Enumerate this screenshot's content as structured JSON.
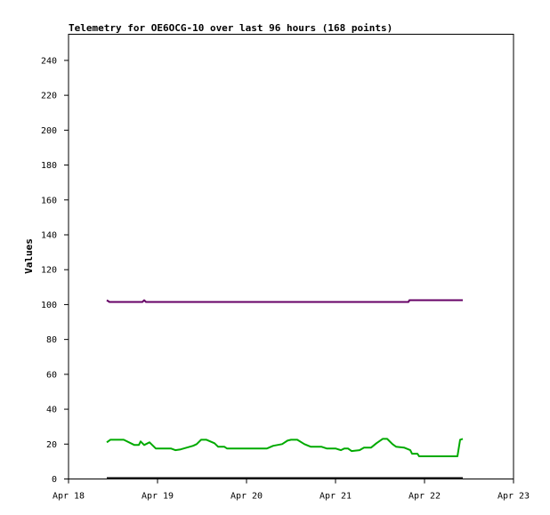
{
  "chart_data": {
    "type": "line",
    "title": "Telemetry for OE6OCG-10 over last 96 hours (168 points)",
    "ylabel": "Values",
    "xlabel": "",
    "ylim": [
      0,
      255
    ],
    "y_ticks": [
      0,
      20,
      40,
      60,
      80,
      100,
      120,
      140,
      160,
      180,
      200,
      220,
      240
    ],
    "x_ticks": [
      "Apr 18",
      "Apr 19",
      "Apr 20",
      "Apr 21",
      "Apr 22",
      "Apr 23"
    ],
    "x_domain_days": [
      0,
      5
    ],
    "grid": false,
    "legend": "none",
    "series": [
      {
        "color": "#660066",
        "points": [
          [
            0.43,
            102.5
          ],
          [
            0.46,
            101.5
          ],
          [
            0.83,
            101.5
          ],
          [
            0.85,
            102.5
          ],
          [
            0.87,
            101.5
          ],
          [
            3.82,
            101.5
          ],
          [
            3.83,
            102.5
          ],
          [
            4.43,
            102.5
          ]
        ]
      },
      {
        "color": "#00aa00",
        "points": [
          [
            0.43,
            21
          ],
          [
            0.47,
            22.5
          ],
          [
            0.62,
            22.5
          ],
          [
            0.74,
            19.5
          ],
          [
            0.79,
            19.5
          ],
          [
            0.81,
            21.5
          ],
          [
            0.85,
            19.5
          ],
          [
            0.91,
            21
          ],
          [
            0.98,
            17.5
          ],
          [
            1.15,
            17.5
          ],
          [
            1.2,
            16.5
          ],
          [
            1.26,
            17
          ],
          [
            1.4,
            19
          ],
          [
            1.44,
            20
          ],
          [
            1.49,
            22.5
          ],
          [
            1.55,
            22.5
          ],
          [
            1.64,
            20.5
          ],
          [
            1.68,
            18.5
          ],
          [
            1.75,
            18.5
          ],
          [
            1.78,
            17.5
          ],
          [
            2.23,
            17.5
          ],
          [
            2.3,
            19
          ],
          [
            2.4,
            20
          ],
          [
            2.46,
            22
          ],
          [
            2.5,
            22.5
          ],
          [
            2.57,
            22.5
          ],
          [
            2.65,
            20
          ],
          [
            2.72,
            18.5
          ],
          [
            2.84,
            18.5
          ],
          [
            2.9,
            17.5
          ],
          [
            3.0,
            17.5
          ],
          [
            3.06,
            16.5
          ],
          [
            3.1,
            17.5
          ],
          [
            3.14,
            17.5
          ],
          [
            3.18,
            16
          ],
          [
            3.27,
            16.5
          ],
          [
            3.32,
            18
          ],
          [
            3.4,
            18
          ],
          [
            3.46,
            20.5
          ],
          [
            3.53,
            23
          ],
          [
            3.58,
            23
          ],
          [
            3.64,
            20
          ],
          [
            3.68,
            18.5
          ],
          [
            3.77,
            18
          ],
          [
            3.84,
            16.5
          ],
          [
            3.86,
            14.5
          ],
          [
            3.92,
            14.5
          ],
          [
            3.94,
            13
          ],
          [
            4.37,
            13
          ],
          [
            4.4,
            22.5
          ],
          [
            4.43,
            23
          ]
        ]
      },
      {
        "color": "#000000",
        "points": [
          [
            0.43,
            0.5
          ],
          [
            4.43,
            0.5
          ]
        ]
      }
    ]
  }
}
